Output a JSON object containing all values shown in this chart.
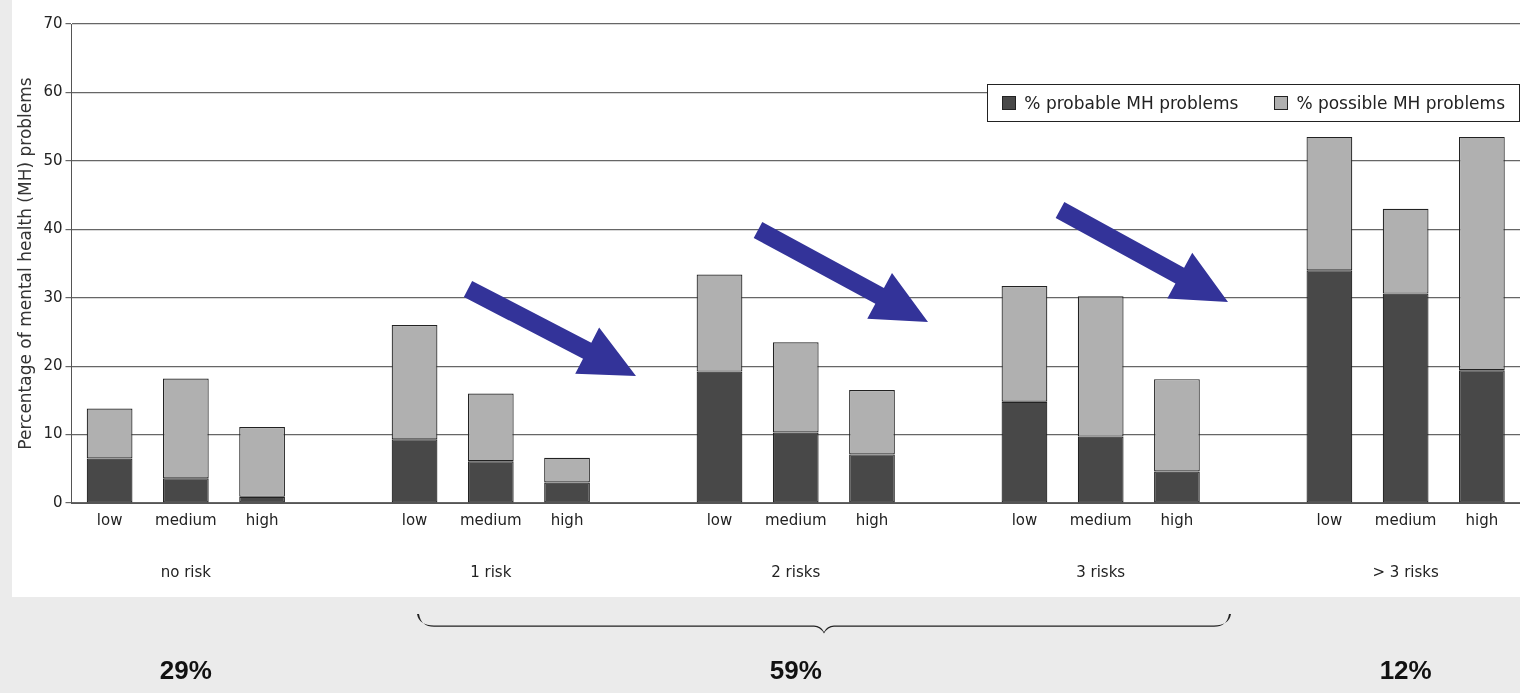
{
  "chart_data": {
    "type": "bar",
    "stacked": true,
    "ylabel": "Percentage of mental health (MH) problems",
    "categories": [
      "low",
      "medium",
      "high",
      null,
      "low",
      "medium",
      "high",
      null,
      "low",
      "medium",
      "high",
      null,
      "low",
      "medium",
      "high",
      null,
      "low",
      "medium",
      "high"
    ],
    "series": [
      {
        "name": "% probable MH problems",
        "color": "#484848",
        "values": [
          6.5,
          3.6,
          0.9,
          null,
          9.3,
          6.1,
          3.0,
          null,
          19.2,
          10.3,
          7.1,
          null,
          14.8,
          9.7,
          4.6,
          null,
          34.0,
          30.6,
          19.4
        ]
      },
      {
        "name": "% possible MH problems",
        "color": "#b0b0b0",
        "values": [
          7.3,
          14.6,
          10.2,
          null,
          16.7,
          9.9,
          3.6,
          null,
          14.2,
          13.2,
          9.4,
          null,
          16.9,
          20.5,
          13.5,
          null,
          19.5,
          12.4,
          34.1
        ]
      }
    ],
    "ylim": [
      0,
      70
    ],
    "yticks": [
      0,
      10,
      20,
      30,
      40,
      50,
      60,
      70
    ],
    "grid": "y",
    "legend": "top right",
    "annotations": [
      "no risk",
      "1 risk",
      "2 risks",
      "3 risks",
      "> 3 risks",
      "29%",
      "59%",
      "12%"
    ]
  }
}
